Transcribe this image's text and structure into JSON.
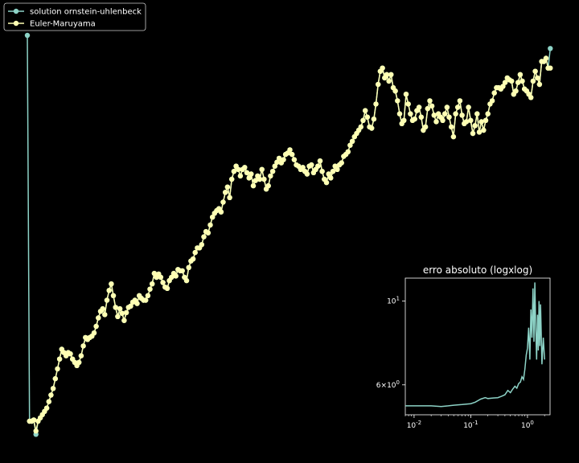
{
  "chart_data": [
    {
      "type": "line",
      "legend": {
        "placement": "top-left"
      },
      "series": [
        {
          "name": "solution ornstein-uhlenbeck",
          "color": "#8dd3c7",
          "marker": "circle"
        },
        {
          "name": "Euler-Maruyama",
          "color": "#ffffb3",
          "marker": "circle"
        }
      ],
      "ornstein_start": 4.6,
      "y": [
        -1.3,
        -1.3,
        -1.28,
        -1.45,
        -1.3,
        -1.25,
        -1.2,
        -1.15,
        -1.1,
        -1.0,
        -0.9,
        -0.8,
        -0.65,
        -0.5,
        -0.35,
        -0.2,
        -0.25,
        -0.3,
        -0.25,
        -0.27,
        -0.35,
        -0.4,
        -0.45,
        -0.4,
        -0.3,
        -0.15,
        -0.02,
        -0.05,
        -0.02,
        0.0,
        0.05,
        0.15,
        0.28,
        0.38,
        0.42,
        0.33,
        0.55,
        0.7,
        0.8,
        0.62,
        0.44,
        0.3,
        0.42,
        0.35,
        0.24,
        0.36,
        0.44,
        0.46,
        0.52,
        0.55,
        0.5,
        0.62,
        0.58,
        0.55,
        0.55,
        0.62,
        0.72,
        0.8,
        0.96,
        0.9,
        0.95,
        0.9,
        0.82,
        0.75,
        0.73,
        0.85,
        0.9,
        0.96,
        0.92,
        1.02,
        1.0,
        1.0,
        0.9,
        0.85,
        1.05,
        1.15,
        1.18,
        1.28,
        1.35,
        1.35,
        1.4,
        1.52,
        1.6,
        1.58,
        1.7,
        1.82,
        1.88,
        1.92,
        1.95,
        1.9,
        2.05,
        2.2,
        2.28,
        2.12,
        2.4,
        2.52,
        2.6,
        2.55,
        2.45,
        2.55,
        2.58,
        2.5,
        2.42,
        2.48,
        2.3,
        2.38,
        2.45,
        2.4,
        2.55,
        2.4,
        2.25,
        2.3,
        2.45,
        2.52,
        2.6,
        2.66,
        2.72,
        2.65,
        2.7,
        2.78,
        2.8,
        2.85,
        2.78,
        2.7,
        2.62,
        2.6,
        2.55,
        2.58,
        2.52,
        2.48,
        2.6,
        2.62,
        2.5,
        2.55,
        2.6,
        2.68,
        2.52,
        2.4,
        2.35,
        2.48,
        2.42,
        2.52,
        2.6,
        2.55,
        2.62,
        2.65,
        2.75,
        2.78,
        2.82,
        2.92,
        2.98,
        3.05,
        3.1,
        3.15,
        3.2,
        3.3,
        3.45,
        3.35,
        3.2,
        3.18,
        3.32,
        3.55,
        3.85,
        4.05,
        4.1,
        3.95,
        4.0,
        3.9,
        4.0,
        3.8,
        3.75,
        3.6,
        3.4,
        3.25,
        3.3,
        3.7,
        3.55,
        3.4,
        3.3,
        3.32,
        3.45,
        3.5,
        3.35,
        3.15,
        3.2,
        3.48,
        3.6,
        3.52,
        3.38,
        3.28,
        3.4,
        3.35,
        3.3,
        3.4,
        3.5,
        3.35,
        3.2,
        3.05,
        3.4,
        3.5,
        3.6,
        3.38,
        3.25,
        3.28,
        3.5,
        3.3,
        3.1,
        3.22,
        3.4,
        3.12,
        3.28,
        3.15,
        3.3,
        3.4,
        3.55,
        3.6,
        3.72,
        3.8,
        3.8,
        3.78,
        3.82,
        3.88,
        3.95,
        3.92,
        3.9,
        3.7,
        3.75,
        3.88,
        4.0,
        3.9,
        3.78,
        3.75,
        3.7,
        3.65,
        3.9,
        4.05,
        3.95,
        3.85,
        4.2,
        4.2,
        4.25,
        4.1,
        4.1
      ],
      "last_ornstein": 4.4
    },
    {
      "type": "line",
      "title": "erro absoluto (logxlog)",
      "xscale": "log",
      "yscale": "log",
      "xlim": [
        0.007,
        2.5
      ],
      "ylim": [
        5.0,
        11.5
      ],
      "xticks": [
        0.01,
        0.1,
        1.0
      ],
      "xticklabels": [
        "10^{-2}",
        "10^{-1}",
        "10^{0}"
      ],
      "yticks": [
        6.0,
        10.0
      ],
      "yticklabels": [
        "6×10^{0}",
        "10^{1}"
      ],
      "series": [
        {
          "color": "#8dd3c7",
          "points": [
            [
              0.007,
              5.28
            ],
            [
              0.01,
              5.28
            ],
            [
              0.015,
              5.28
            ],
            [
              0.02,
              5.28
            ],
            [
              0.03,
              5.26
            ],
            [
              0.04,
              5.28
            ],
            [
              0.05,
              5.3
            ],
            [
              0.07,
              5.32
            ],
            [
              0.1,
              5.35
            ],
            [
              0.12,
              5.4
            ],
            [
              0.15,
              5.5
            ],
            [
              0.18,
              5.55
            ],
            [
              0.2,
              5.52
            ],
            [
              0.25,
              5.54
            ],
            [
              0.3,
              5.55
            ],
            [
              0.35,
              5.6
            ],
            [
              0.4,
              5.65
            ],
            [
              0.45,
              5.8
            ],
            [
              0.5,
              5.72
            ],
            [
              0.55,
              5.85
            ],
            [
              0.6,
              5.95
            ],
            [
              0.65,
              5.88
            ],
            [
              0.7,
              6.05
            ],
            [
              0.75,
              6.1
            ],
            [
              0.8,
              6.3
            ],
            [
              0.85,
              6.2
            ],
            [
              0.9,
              6.6
            ],
            [
              0.95,
              7.2
            ],
            [
              1.0,
              7.5
            ],
            [
              1.05,
              8.5
            ],
            [
              1.1,
              7.0
            ],
            [
              1.15,
              9.5
            ],
            [
              1.2,
              8.0
            ],
            [
              1.25,
              10.8
            ],
            [
              1.3,
              7.8
            ],
            [
              1.35,
              11.2
            ],
            [
              1.4,
              8.5
            ],
            [
              1.45,
              7.0
            ],
            [
              1.5,
              9.2
            ],
            [
              1.55,
              7.4
            ],
            [
              1.6,
              10.0
            ],
            [
              1.65,
              7.6
            ],
            [
              1.7,
              9.8
            ],
            [
              1.8,
              6.8
            ],
            [
              1.9,
              8.0
            ],
            [
              2.0,
              7.0
            ]
          ]
        }
      ]
    }
  ]
}
